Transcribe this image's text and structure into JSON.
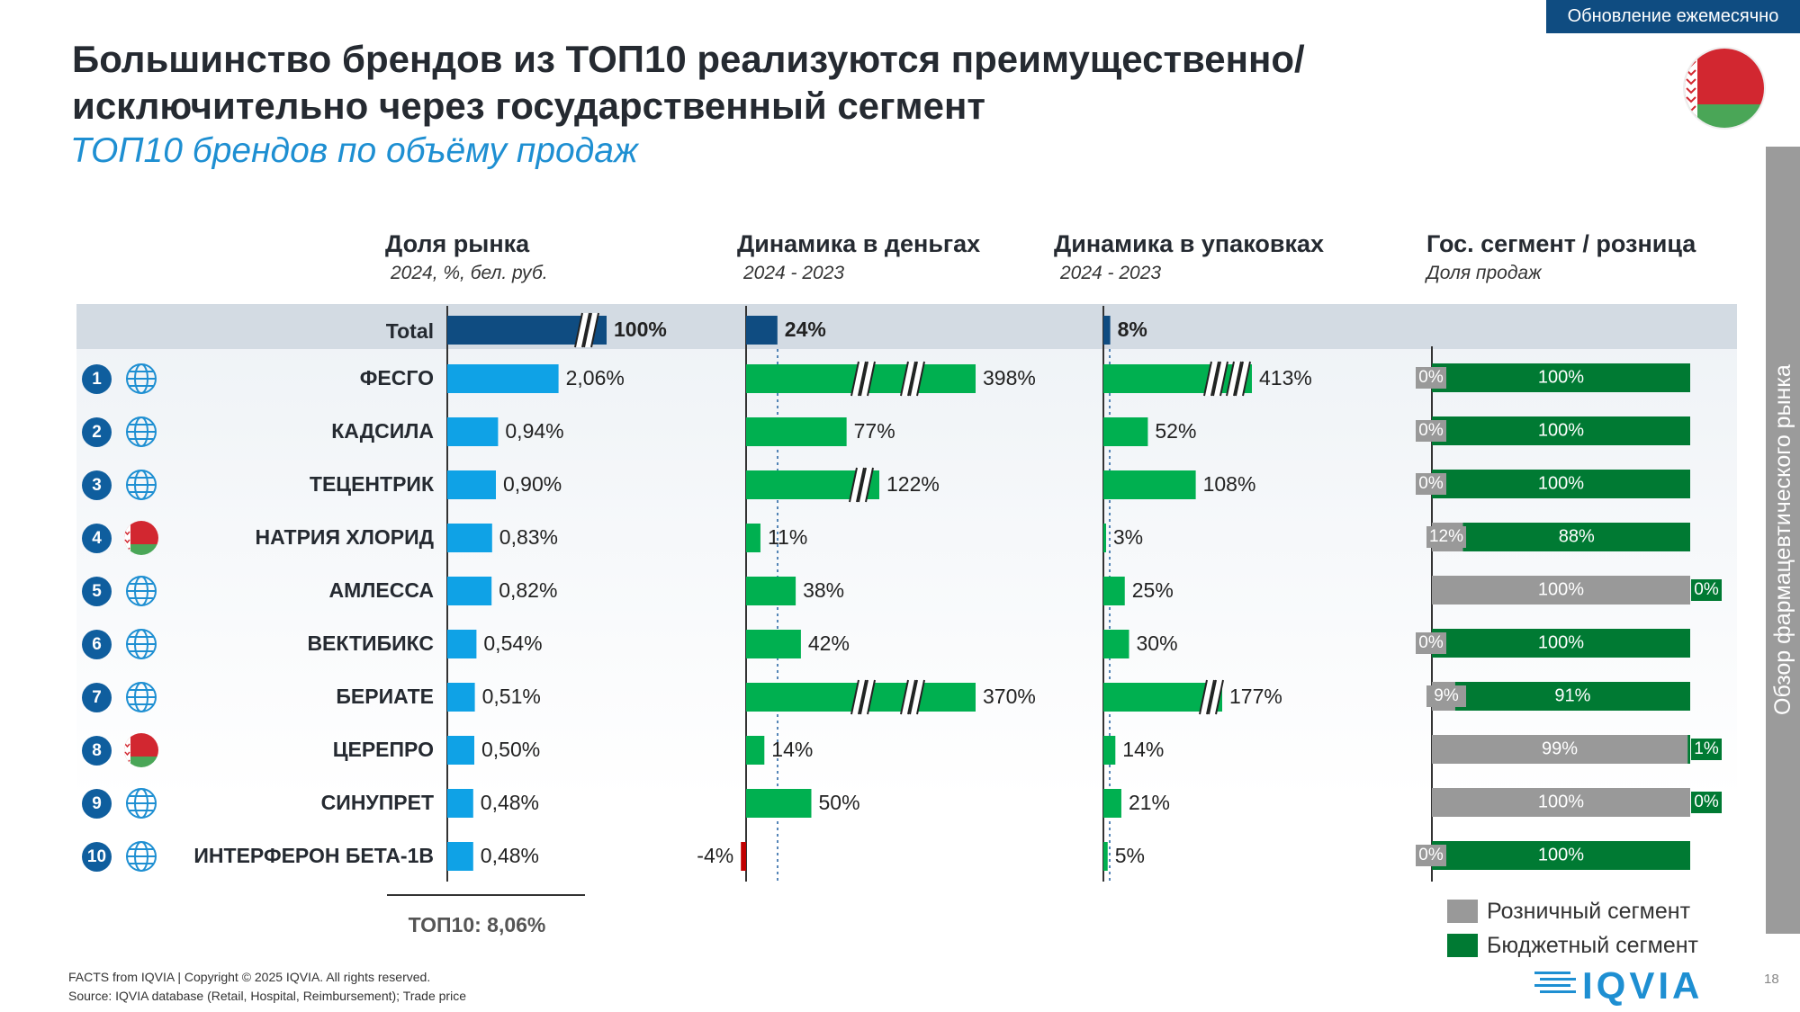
{
  "badge": "Обновление ежемесячно",
  "title": "Большинство брендов из ТОП10 реализуются преимущественно/исключительно через государственный сегмент",
  "subtitle": "ТОП10 брендов по объёму продаж",
  "side_tab": "Обзор фармацевтического рынка",
  "columns": {
    "share": {
      "title": "Доля рынка",
      "sub": "2024, %, бел. руб."
    },
    "money": {
      "title": "Динамика в деньгах",
      "sub": "2024 -  2023"
    },
    "packs": {
      "title": "Динамика в упаковках",
      "sub": "2024 -  2023"
    },
    "segment": {
      "title": "Гос. сегмент / розница",
      "sub": "Доля продаж"
    }
  },
  "total": {
    "label": "Total",
    "share": "100%",
    "money": "24%",
    "packs": "8%"
  },
  "rows": [
    {
      "rank": "1",
      "origin": "globe",
      "name": "ФЕСГО",
      "share_label": "2,06%",
      "money_label": "398%",
      "packs_label": "413%",
      "retail_label": "0%",
      "budget_label": "100%"
    },
    {
      "rank": "2",
      "origin": "globe",
      "name": "КАДСИЛА",
      "share_label": "0,94%",
      "money_label": "77%",
      "packs_label": "52%",
      "retail_label": "0%",
      "budget_label": "100%"
    },
    {
      "rank": "3",
      "origin": "globe",
      "name": "ТЕЦЕНТРИК",
      "share_label": "0,90%",
      "money_label": "122%",
      "packs_label": "108%",
      "retail_label": "0%",
      "budget_label": "100%"
    },
    {
      "rank": "4",
      "origin": "flag",
      "name": "НАТРИЯ ХЛОРИД",
      "share_label": "0,83%",
      "money_label": "11%",
      "packs_label": "3%",
      "retail_label": "12%",
      "budget_label": "88%"
    },
    {
      "rank": "5",
      "origin": "globe",
      "name": "АМЛЕССА",
      "share_label": "0,82%",
      "money_label": "38%",
      "packs_label": "25%",
      "retail_label": "100%",
      "budget_label": "0%"
    },
    {
      "rank": "6",
      "origin": "globe",
      "name": "ВЕКТИБИКС",
      "share_label": "0,54%",
      "money_label": "42%",
      "packs_label": "30%",
      "retail_label": "0%",
      "budget_label": "100%"
    },
    {
      "rank": "7",
      "origin": "globe",
      "name": "БЕРИАТЕ",
      "share_label": "0,51%",
      "money_label": "370%",
      "packs_label": "177%",
      "retail_label": "9%",
      "budget_label": "91%"
    },
    {
      "rank": "8",
      "origin": "flag",
      "name": "ЦЕРЕПРО",
      "share_label": "0,50%",
      "money_label": "14%",
      "packs_label": "14%",
      "retail_label": "99%",
      "budget_label": "1%"
    },
    {
      "rank": "9",
      "origin": "globe",
      "name": "СИНУПРЕТ",
      "share_label": "0,48%",
      "money_label": "50%",
      "packs_label": "21%",
      "retail_label": "100%",
      "budget_label": "0%"
    },
    {
      "rank": "10",
      "origin": "globe",
      "name": "ИНТЕРФЕРОН БЕТА-1В",
      "share_label": "0,48%",
      "money_label": "-4%",
      "packs_label": "5%",
      "retail_label": "0%",
      "budget_label": "100%"
    }
  ],
  "top10": "ТОП10: 8,06%",
  "legend": {
    "retail": "Розничный сегмент",
    "budget": "Бюджетный сегмент"
  },
  "footer": {
    "line1": "FACTS from IQVIA | Copyright © 2025 IQVIA. All rights reserved.",
    "line2": "Source: IQVIA database (Retail, Hospital, Reimbursement); Trade price"
  },
  "logo": "IQVIA",
  "page_number": "18",
  "colors": {
    "total_bar": "#0f4c81",
    "share_bar": "#0fa2e6",
    "growth_bar": "#00b050",
    "negative_bar": "#c00000",
    "retail": "#999999",
    "budget": "#007a33",
    "badge": "#0f4c81",
    "accent": "#1e8fd2"
  },
  "chart_data": {
    "type": "bar",
    "categories": [
      "Total",
      "ФЕСГО",
      "КАДСИЛА",
      "ТЕЦЕНТРИК",
      "НАТРИЯ ХЛОРИД",
      "АМЛЕССА",
      "ВЕКТИБИКС",
      "БЕРИАТЕ",
      "ЦЕРЕПРО",
      "СИНУПРЕТ",
      "ИНТЕРФЕРОН БЕТА-1В"
    ],
    "series": [
      {
        "name": "Доля рынка",
        "values": [
          100,
          2.06,
          0.94,
          0.9,
          0.83,
          0.82,
          0.54,
          0.51,
          0.5,
          0.48,
          0.48
        ],
        "broken": [
          true,
          false,
          false,
          false,
          false,
          false,
          false,
          false,
          false,
          false,
          false
        ]
      },
      {
        "name": "Динамика в деньгах",
        "values": [
          24,
          398,
          77,
          122,
          11,
          38,
          42,
          370,
          14,
          50,
          -4
        ],
        "broken": [
          false,
          true,
          false,
          true,
          false,
          false,
          false,
          true,
          false,
          false,
          false
        ]
      },
      {
        "name": "Динамика в упаковках",
        "values": [
          8,
          413,
          52,
          108,
          3,
          25,
          30,
          177,
          14,
          21,
          5
        ],
        "broken": [
          false,
          true,
          false,
          false,
          false,
          false,
          false,
          true,
          false,
          false,
          false
        ]
      },
      {
        "name": "Розничный сегмент",
        "values": [
          null,
          0,
          0,
          0,
          12,
          100,
          0,
          9,
          99,
          100,
          0
        ]
      },
      {
        "name": "Бюджетный сегмент",
        "values": [
          null,
          100,
          100,
          100,
          88,
          0,
          100,
          91,
          1,
          0,
          100
        ]
      }
    ]
  }
}
